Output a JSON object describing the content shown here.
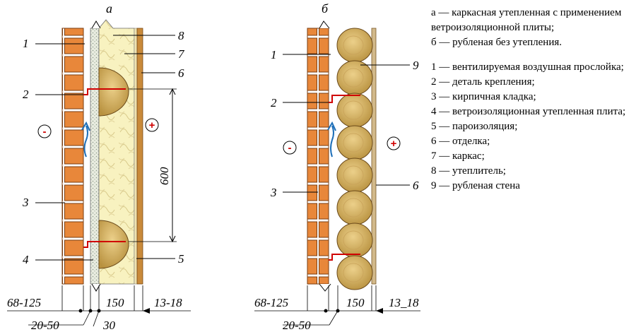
{
  "titles": {
    "a": "а",
    "b": "б"
  },
  "signs": {
    "minus": "-",
    "plus": "+"
  },
  "labels_a": {
    "l1": "1",
    "l2": "2",
    "l3": "3",
    "l4": "4",
    "l5": "5",
    "l6": "6",
    "l7": "7",
    "l8": "8"
  },
  "labels_b": {
    "l1": "1",
    "l2": "2",
    "l3": "3",
    "l6": "6",
    "l9": "9"
  },
  "dims_a": {
    "brick": "68-125",
    "gap": "20-50",
    "plate": "30",
    "insul": "150",
    "finish": "13-18",
    "spacing": "600"
  },
  "dims_b": {
    "brick": "68-125",
    "gap": "20-50",
    "log": "150",
    "finish": "13_18"
  },
  "legend": {
    "variants": [
      "а — каркасная утепленная с применением ветроизоляционной плиты;",
      "б — рубленая без утепления."
    ],
    "items": [
      "1 — вентилируемая воздушная прослойка;",
      "2 — деталь крепления;",
      "3 — кирпичная кладка;",
      "4 — ветроизоляционная утепленная плита;",
      "5 — пароизоляция;",
      "6 — отделка;",
      "7 — каркас;",
      "8 — утеплитель;",
      "9 — рубленая стена"
    ]
  },
  "colors": {
    "brick": "#e8873a",
    "mortar": "#ffffff",
    "insulation": "#f8f2c0",
    "wood": "#d9b76a",
    "finish": "#c98a3a",
    "accent": "#d00000",
    "arrow": "#1e6fb8"
  }
}
